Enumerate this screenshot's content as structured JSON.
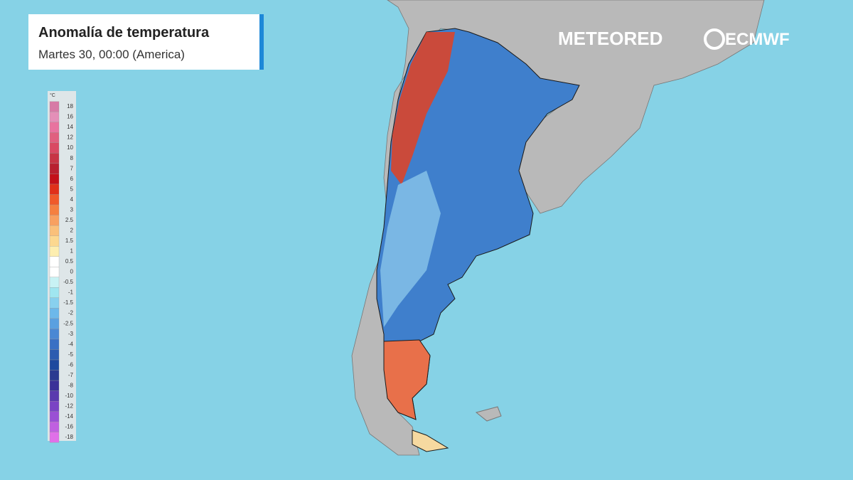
{
  "header": {
    "title": "Anomalía de temperatura",
    "subtitle": "Martes 30, 00:00 (America)"
  },
  "legend": {
    "unit": "°C",
    "labels": [
      18,
      16,
      14,
      12,
      10,
      8,
      7,
      6,
      5,
      4,
      3,
      2.5,
      2,
      1.5,
      1,
      0.5,
      0,
      -0.5,
      -1,
      -1.5,
      -2,
      -2.5,
      -3,
      -4,
      -5,
      -6,
      -7,
      -8,
      -10,
      -12,
      -14,
      -16,
      -18
    ],
    "colors": [
      "#d77aa6",
      "#e48fb8",
      "#e8739f",
      "#e0607f",
      "#d94a63",
      "#c73545",
      "#b82030",
      "#c3101a",
      "#e0301a",
      "#f05a2a",
      "#f58040",
      "#f8a060",
      "#fac07a",
      "#fcd890",
      "#fdeeb0",
      "#ffffff",
      "#ffffff",
      "#c8f2f4",
      "#a0e6f0",
      "#88d0ee",
      "#6cb8ea",
      "#5aa0e0",
      "#4a88d4",
      "#3a70c4",
      "#2c5cb0",
      "#1e4a9e",
      "#2a3a90",
      "#3a3098",
      "#5a3aae",
      "#7a44c4",
      "#9a50d4",
      "#c060e0",
      "#e070e8"
    ]
  },
  "logos": {
    "left": "METEORED",
    "right": "ECMWF"
  }
}
